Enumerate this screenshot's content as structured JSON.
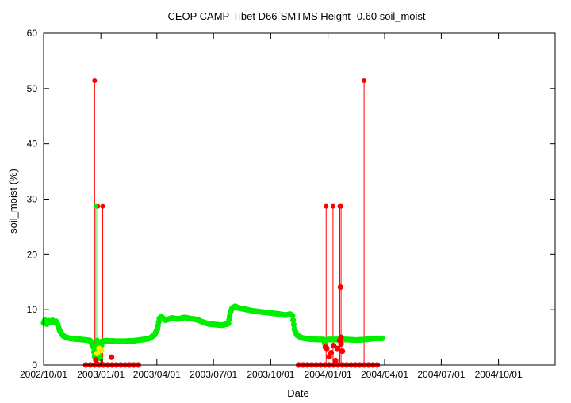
{
  "chart_data": {
    "type": "scatter",
    "title": "CEOP CAMP-Tibet D66-SMTMS Height -0.60 soil_moist",
    "xlabel": "Date",
    "ylabel": "soil_moist (%)",
    "xlim": [
      "2002-10-01",
      "2004-12-31"
    ],
    "ylim": [
      0,
      60
    ],
    "x_ticks": [
      "2002/10/01",
      "2003/01/01",
      "2003/04/01",
      "2003/07/01",
      "2003/10/01",
      "2004/01/01",
      "2004/04/01",
      "2004/07/01",
      "2004/10/01"
    ],
    "y_ticks": [
      0,
      10,
      20,
      30,
      40,
      50,
      60
    ],
    "grid": false,
    "colors": {
      "good": "#00ee00",
      "flagged": "#ff0000",
      "questionable": "#ffee00",
      "axis": "#000000"
    },
    "series": [
      {
        "color": "#00ee00",
        "mode": "dense-markers",
        "points": [
          [
            "2002-10-01",
            7.6
          ],
          [
            "2002-10-03",
            8.1
          ],
          [
            "2002-10-06",
            7.4
          ],
          [
            "2002-10-09",
            8.0
          ],
          [
            "2002-10-12",
            7.7
          ],
          [
            "2002-10-15",
            8.1
          ],
          [
            "2002-10-18",
            7.8
          ],
          [
            "2002-10-21",
            7.9
          ],
          [
            "2002-10-24",
            7.2
          ],
          [
            "2002-10-27",
            6.2
          ],
          [
            "2002-11-01",
            5.3
          ],
          [
            "2002-11-06",
            5.0
          ],
          [
            "2002-11-12",
            4.8
          ],
          [
            "2002-11-20",
            4.7
          ],
          [
            "2002-12-01",
            4.6
          ],
          [
            "2002-12-10",
            4.5
          ],
          [
            "2002-12-15",
            4.4
          ],
          [
            "2002-12-20",
            3.2
          ],
          [
            "2002-12-22",
            1.5
          ],
          [
            "2002-12-24",
            2.0
          ],
          [
            "2002-12-26",
            4.4
          ],
          [
            "2002-12-28",
            3.1
          ],
          [
            "2002-12-31",
            1.2
          ],
          [
            "2003-01-01",
            2.9
          ],
          [
            "2003-01-03",
            4.3
          ],
          [
            "2003-01-10",
            4.4
          ],
          [
            "2003-01-25",
            4.3
          ],
          [
            "2003-02-10",
            4.3
          ],
          [
            "2003-02-25",
            4.4
          ],
          [
            "2003-03-10",
            4.6
          ],
          [
            "2003-03-20",
            4.8
          ],
          [
            "2003-03-28",
            5.4
          ],
          [
            "2003-04-02",
            6.5
          ],
          [
            "2003-04-05",
            8.4
          ],
          [
            "2003-04-08",
            8.7
          ],
          [
            "2003-04-15",
            8.1
          ],
          [
            "2003-04-25",
            8.5
          ],
          [
            "2003-05-05",
            8.3
          ],
          [
            "2003-05-15",
            8.6
          ],
          [
            "2003-05-25",
            8.4
          ],
          [
            "2003-06-05",
            8.2
          ],
          [
            "2003-06-15",
            7.7
          ],
          [
            "2003-06-25",
            7.4
          ],
          [
            "2003-07-05",
            7.3
          ],
          [
            "2003-07-15",
            7.2
          ],
          [
            "2003-07-25",
            7.5
          ],
          [
            "2003-07-28",
            9.5
          ],
          [
            "2003-07-31",
            10.3
          ],
          [
            "2003-08-05",
            10.6
          ],
          [
            "2003-08-10",
            10.3
          ],
          [
            "2003-08-20",
            10.1
          ],
          [
            "2003-09-01",
            9.8
          ],
          [
            "2003-09-15",
            9.6
          ],
          [
            "2003-10-01",
            9.4
          ],
          [
            "2003-10-15",
            9.2
          ],
          [
            "2003-10-25",
            9.0
          ],
          [
            "2003-11-01",
            9.2
          ],
          [
            "2003-11-05",
            8.9
          ],
          [
            "2003-11-08",
            6.5
          ],
          [
            "2003-11-12",
            5.4
          ],
          [
            "2003-11-20",
            4.9
          ],
          [
            "2003-12-01",
            4.7
          ],
          [
            "2003-12-15",
            4.6
          ],
          [
            "2003-12-25",
            4.6
          ],
          [
            "2003-12-28",
            3.4
          ],
          [
            "2003-12-29",
            4.5
          ],
          [
            "2004-01-01",
            4.6
          ],
          [
            "2004-01-10",
            4.6
          ],
          [
            "2004-01-20",
            4.6
          ],
          [
            "2004-02-01",
            4.6
          ],
          [
            "2004-02-15",
            4.5
          ],
          [
            "2004-03-01",
            4.6
          ],
          [
            "2004-03-15",
            4.8
          ],
          [
            "2004-03-28",
            4.8
          ]
        ]
      },
      {
        "color": "#ff0000",
        "mode": "dense-markers",
        "points": [
          [
            "2002-12-08",
            0.0
          ],
          [
            "2002-12-15",
            0.0
          ],
          [
            "2002-12-22",
            0.0
          ],
          [
            "2002-12-29",
            0.0
          ],
          [
            "2003-01-05",
            0.0
          ],
          [
            "2003-01-12",
            0.0
          ],
          [
            "2003-01-19",
            0.0
          ],
          [
            "2003-01-26",
            0.0
          ],
          [
            "2003-02-02",
            0.0
          ],
          [
            "2003-02-09",
            0.0
          ],
          [
            "2003-02-16",
            0.0
          ],
          [
            "2003-02-23",
            0.0
          ],
          [
            "2003-03-02",
            0.0
          ],
          [
            "2003-11-15",
            0.0
          ],
          [
            "2003-11-22",
            0.0
          ],
          [
            "2003-11-29",
            0.0
          ],
          [
            "2003-12-06",
            0.0
          ],
          [
            "2003-12-13",
            0.0
          ],
          [
            "2003-12-20",
            0.0
          ],
          [
            "2003-12-27",
            0.0
          ],
          [
            "2004-01-03",
            0.0
          ],
          [
            "2004-01-10",
            0.0
          ],
          [
            "2004-01-17",
            0.0
          ],
          [
            "2004-01-24",
            0.0
          ],
          [
            "2004-01-31",
            0.0
          ],
          [
            "2004-02-07",
            0.0
          ],
          [
            "2004-02-14",
            0.0
          ],
          [
            "2004-02-21",
            0.0
          ],
          [
            "2004-02-28",
            0.0
          ],
          [
            "2004-03-06",
            0.0
          ],
          [
            "2004-03-13",
            0.0
          ],
          [
            "2004-03-20",
            0.0
          ],
          [
            "2002-12-24",
            0.9
          ],
          [
            "2002-12-25",
            0.3
          ],
          [
            "2003-01-18",
            1.4
          ],
          [
            "2003-12-28",
            3.2
          ],
          [
            "2003-12-30",
            3.0
          ],
          [
            "2004-01-03",
            1.5
          ],
          [
            "2004-01-06",
            2.2
          ],
          [
            "2004-01-10",
            3.5
          ],
          [
            "2004-01-13",
            0.8
          ],
          [
            "2004-01-16",
            3.0
          ],
          [
            "2004-01-20",
            4.4
          ],
          [
            "2004-01-22",
            3.8
          ],
          [
            "2004-01-24",
            2.5
          ],
          [
            "2004-01-21",
            14.1
          ],
          [
            "2004-01-22",
            5.0
          ]
        ]
      },
      {
        "color": "#ffee00",
        "mode": "dense-markers",
        "points": [
          [
            "2002-12-29",
            3.0
          ],
          [
            "2003-01-02",
            2.6
          ],
          [
            "2002-12-26",
            2.1
          ]
        ]
      },
      {
        "color": "#ff0000",
        "mode": "spikes",
        "points": [
          [
            "2002-12-22",
            51.4
          ],
          [
            "2002-12-27",
            28.7
          ],
          [
            "2003-01-04",
            28.7
          ],
          [
            "2003-12-29",
            28.7
          ],
          [
            "2004-01-09",
            28.7
          ],
          [
            "2004-01-20",
            28.7
          ],
          [
            "2004-01-22",
            28.7
          ],
          [
            "2004-02-28",
            51.4
          ]
        ]
      },
      {
        "color": "#00ee00",
        "mode": "spikes",
        "points": [
          [
            "2002-12-24",
            28.7
          ]
        ]
      }
    ]
  }
}
